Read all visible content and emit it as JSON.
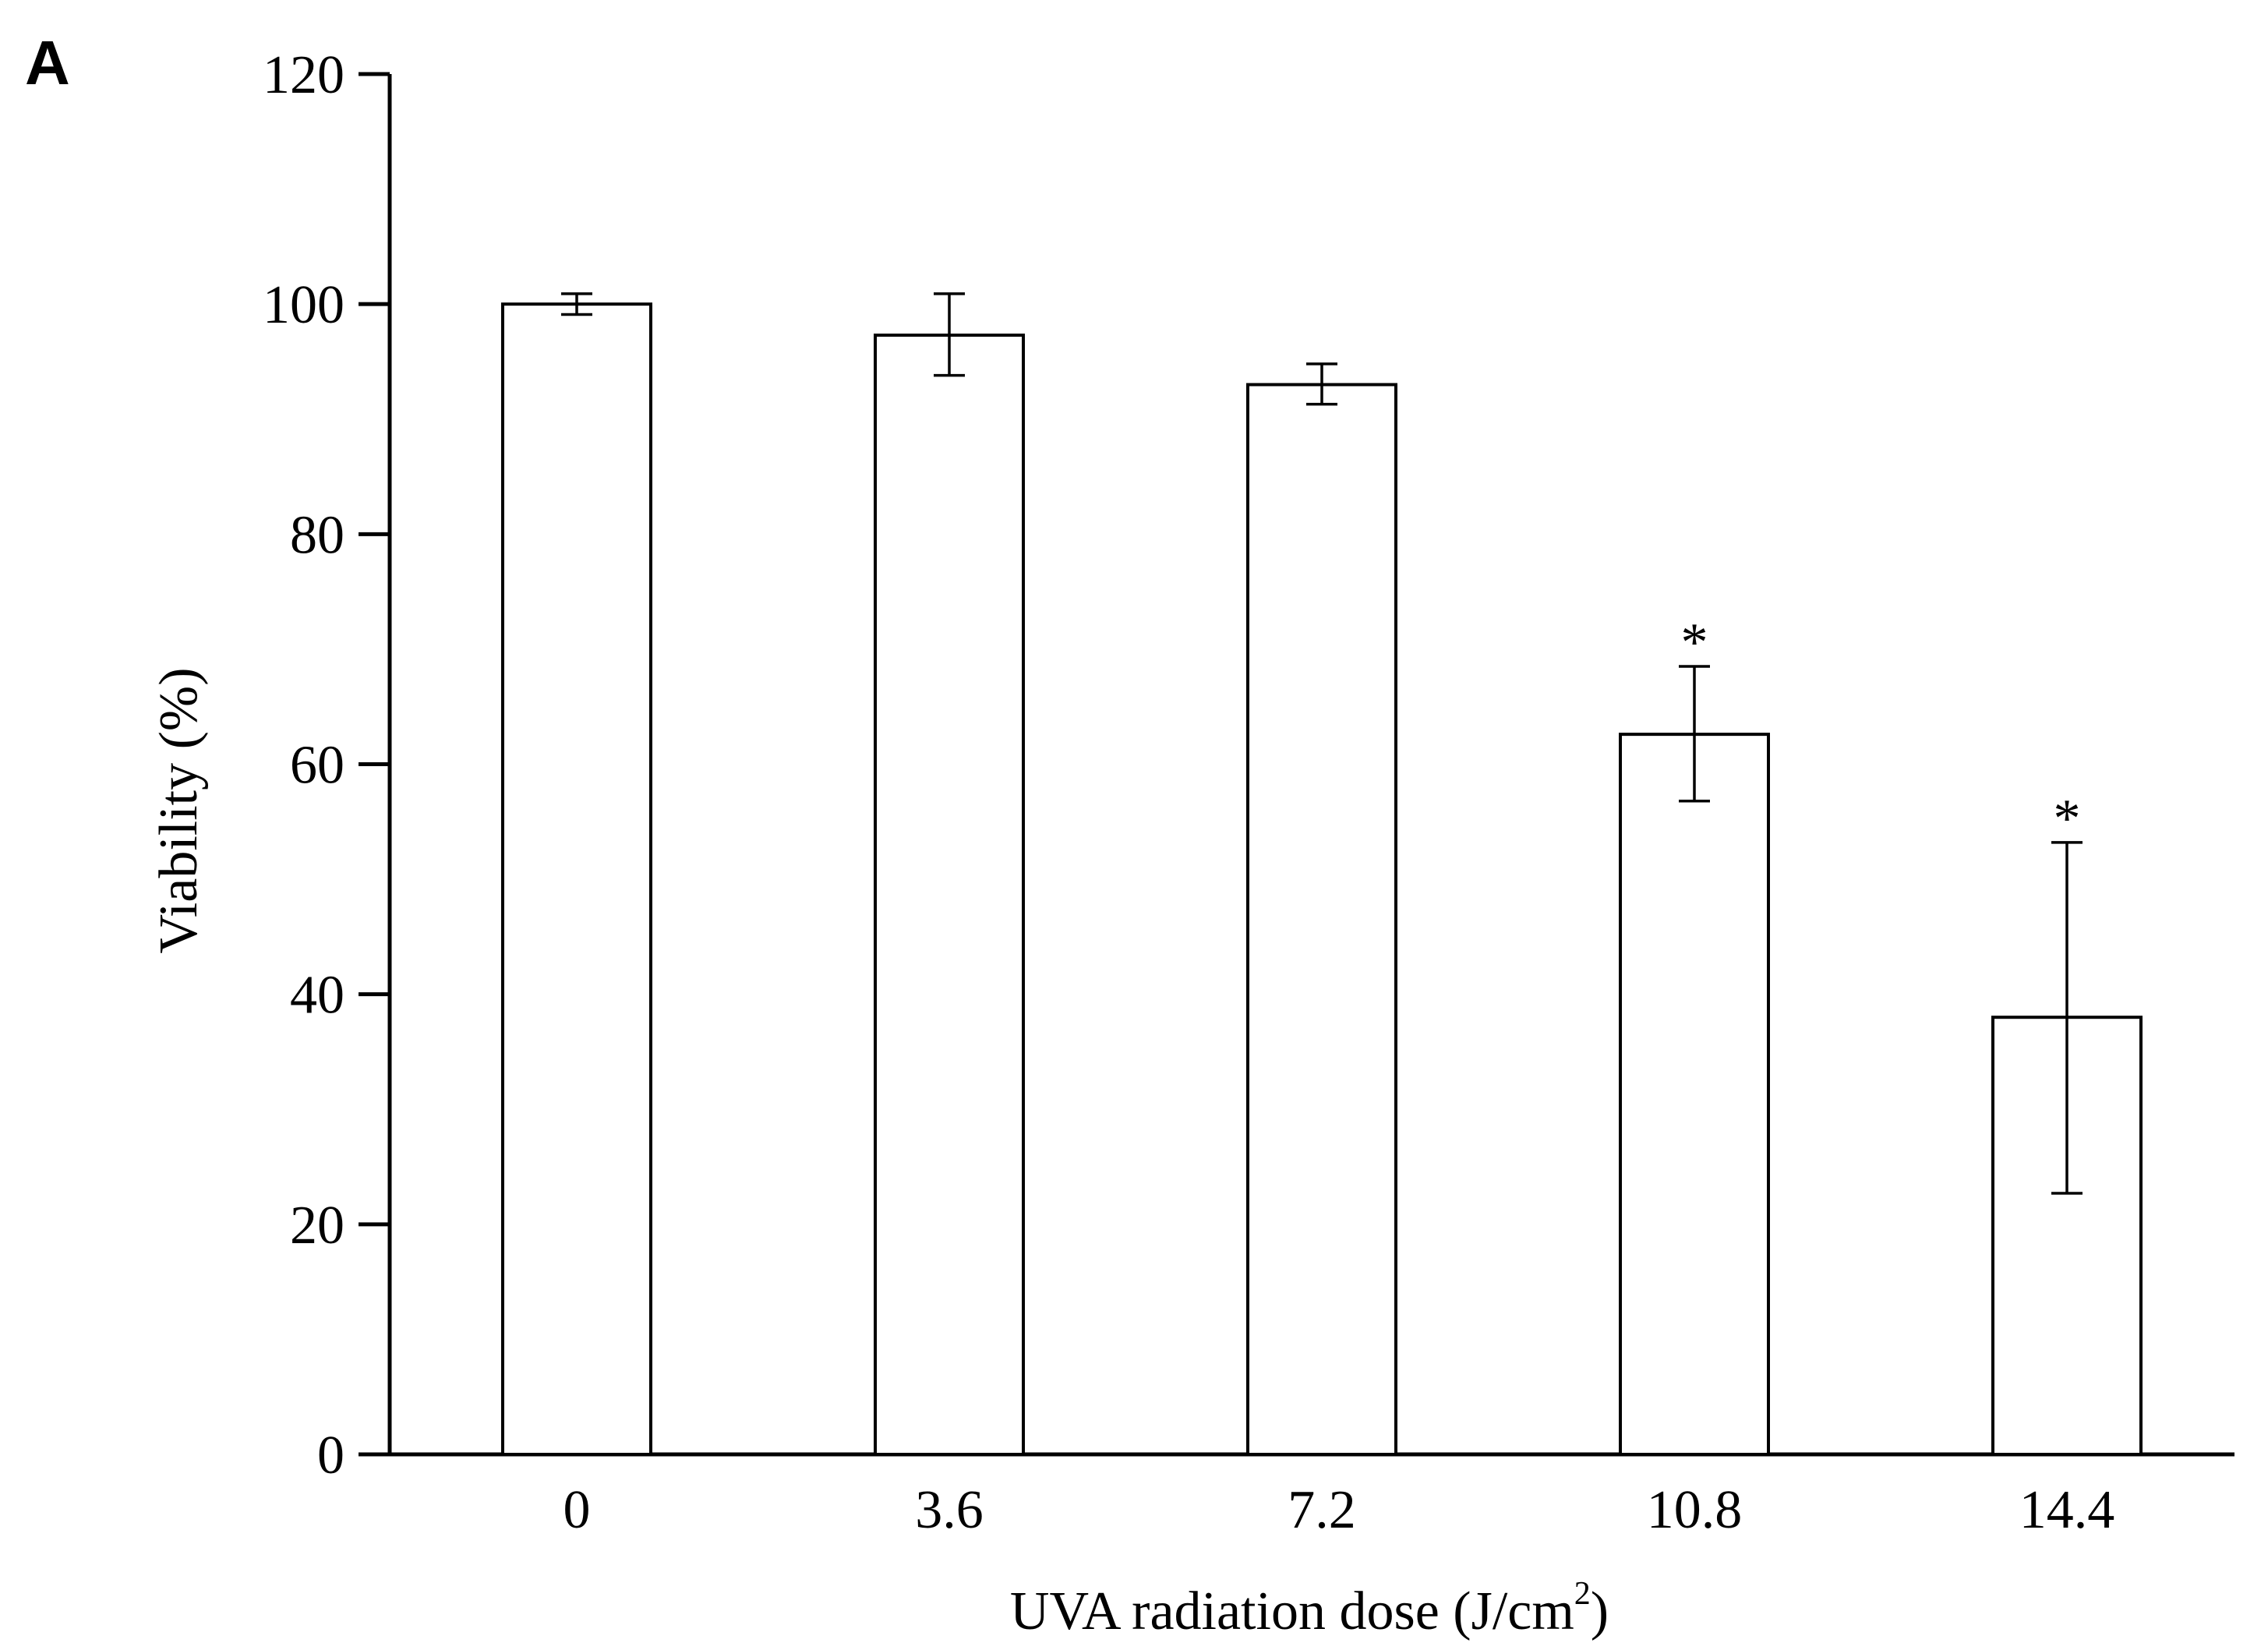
{
  "panel_label": "A",
  "chart_data": {
    "type": "bar",
    "title": "",
    "xlabel_main": "UVA radiation dose (J/cm",
    "xlabel_sup": "2",
    "xlabel_close": ")",
    "ylabel": "Viability (%)",
    "ylim": [
      0,
      120
    ],
    "yticks": [
      0,
      20,
      40,
      60,
      80,
      100,
      120
    ],
    "categories": [
      "0",
      "3.6",
      "7.2",
      "10.8",
      "14.4"
    ],
    "values": [
      100,
      97.3,
      93.0,
      62.6,
      38.0
    ],
    "errors": [
      [
        99.1,
        100.9
      ],
      [
        93.8,
        100.9
      ],
      [
        91.3,
        94.8
      ],
      [
        56.8,
        68.5
      ],
      [
        22.7,
        53.2
      ]
    ],
    "significance": [
      "",
      "",
      "",
      "*",
      "*"
    ],
    "grid": false,
    "bar_fill": "#ffffff",
    "bar_stroke": "#000000"
  }
}
